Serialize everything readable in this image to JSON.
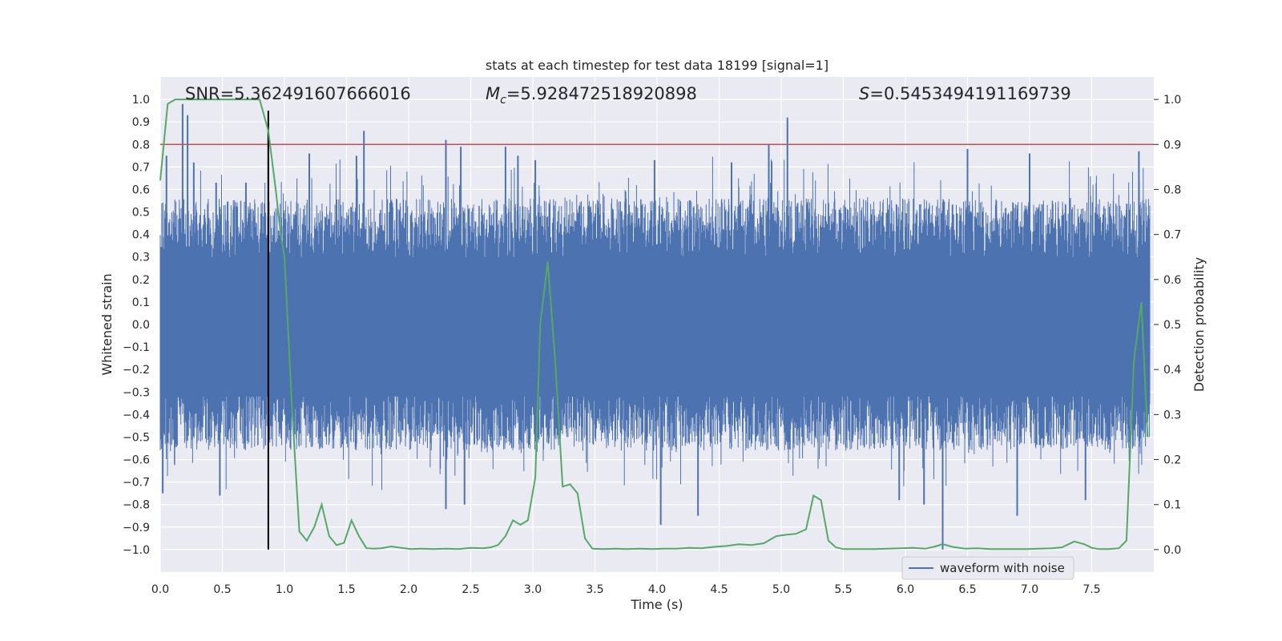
{
  "chart_data": {
    "type": "line",
    "title": "stats at each timestep for test data 18199 [signal=1]",
    "xlabel": "Time (s)",
    "ylabel": "Whitened strain",
    "y2label": "Detection probability",
    "xlim": [
      0.0,
      8.0
    ],
    "ylim": [
      -1.1,
      1.1
    ],
    "y2lim": [
      -0.05,
      1.05
    ],
    "x_ticks": [
      0.0,
      0.5,
      1.0,
      1.5,
      2.0,
      2.5,
      3.0,
      3.5,
      4.0,
      4.5,
      5.0,
      5.5,
      6.0,
      6.5,
      7.0,
      7.5
    ],
    "x_tick_labels": [
      "0.0",
      "0.5",
      "1.0",
      "1.5",
      "2.0",
      "2.5",
      "3.0",
      "3.5",
      "4.0",
      "4.5",
      "5.0",
      "5.5",
      "6.0",
      "6.5",
      "7.0",
      "7.5"
    ],
    "y_ticks": [
      1.0,
      0.9,
      0.8,
      0.7,
      0.6,
      0.5,
      0.4,
      0.3,
      0.2,
      0.1,
      0.0,
      -0.1,
      -0.2,
      -0.3,
      -0.4,
      -0.5,
      -0.6,
      -0.7,
      -0.8,
      -0.9,
      -1.0
    ],
    "y_tick_labels": [
      "1.0",
      "0.9",
      "0.8",
      "0.7",
      "0.6",
      "0.5",
      "0.4",
      "0.3",
      "0.2",
      "0.1",
      "0.0",
      "−0.1",
      "−0.2",
      "−0.3",
      "−0.4",
      "−0.5",
      "−0.6",
      "−0.7",
      "−0.8",
      "−0.9",
      "−1.0"
    ],
    "y2_ticks": [
      1.0,
      0.9,
      0.8,
      0.7,
      0.6,
      0.5,
      0.4,
      0.3,
      0.2,
      0.1,
      0.0
    ],
    "y2_tick_labels": [
      "1.0",
      "0.9",
      "0.8",
      "0.7",
      "0.6",
      "0.5",
      "0.4",
      "0.3",
      "0.2",
      "0.1",
      "0.0"
    ],
    "threshold": 0.9,
    "marker_time": 0.87,
    "stats": {
      "snr": "SNR=5.362491607666016",
      "mc_symbol": "M",
      "mc_sub": "c",
      "mc_value": "=5.928472518920898",
      "s_symbol": "S",
      "s_value": "=0.5453494191169739"
    },
    "legend": {
      "label": "waveform with noise",
      "position": "lower-right"
    },
    "colors": {
      "waveform": "#4c72b0",
      "probability": "#55a868",
      "threshold": "#c44e52",
      "marker": "#000000",
      "background": "#eaeaf2",
      "grid": "#ffffff"
    },
    "waveform": {
      "name": "waveform with noise",
      "description_samples": 8192,
      "spikes": [
        {
          "t": 0.05,
          "v": 0.75
        },
        {
          "t": 0.18,
          "v": 0.98
        },
        {
          "t": 0.22,
          "v": 0.93
        },
        {
          "t": 0.27,
          "v": 0.72
        },
        {
          "t": 0.45,
          "v": 0.63
        },
        {
          "t": 0.69,
          "v": 0.63
        },
        {
          "t": 0.87,
          "v": 0.85
        },
        {
          "t": 1.2,
          "v": 0.76
        },
        {
          "t": 1.58,
          "v": 0.75
        },
        {
          "t": 1.64,
          "v": 0.86
        },
        {
          "t": 2.3,
          "v": 0.82
        },
        {
          "t": 2.42,
          "v": 0.79
        },
        {
          "t": 2.78,
          "v": 0.79
        },
        {
          "t": 2.88,
          "v": 0.75
        },
        {
          "t": 3.02,
          "v": 0.73
        },
        {
          "t": 3.98,
          "v": 0.73
        },
        {
          "t": 4.6,
          "v": 0.72
        },
        {
          "t": 4.9,
          "v": 0.8
        },
        {
          "t": 5.05,
          "v": 0.92
        },
        {
          "t": 6.5,
          "v": 0.78
        },
        {
          "t": 7.0,
          "v": 0.76
        },
        {
          "t": 7.88,
          "v": 0.77
        },
        {
          "t": 0.02,
          "v": -0.75
        },
        {
          "t": 0.48,
          "v": -0.76
        },
        {
          "t": 2.3,
          "v": -0.82
        },
        {
          "t": 2.45,
          "v": -0.8
        },
        {
          "t": 4.03,
          "v": -0.89
        },
        {
          "t": 4.33,
          "v": -0.85
        },
        {
          "t": 5.95,
          "v": -0.78
        },
        {
          "t": 6.15,
          "v": -0.8
        },
        {
          "t": 6.3,
          "v": -1.0
        },
        {
          "t": 6.9,
          "v": -0.85
        },
        {
          "t": 7.45,
          "v": -0.78
        }
      ]
    },
    "probability": {
      "name": "detection probability",
      "x": [
        0.0,
        0.06,
        0.12,
        0.2,
        0.3,
        0.4,
        0.5,
        0.6,
        0.7,
        0.8,
        0.87,
        0.93,
        0.97,
        1.0,
        1.06,
        1.12,
        1.18,
        1.24,
        1.3,
        1.36,
        1.42,
        1.48,
        1.54,
        1.6,
        1.66,
        1.72,
        1.78,
        1.86,
        1.94,
        2.02,
        2.1,
        2.2,
        2.3,
        2.4,
        2.5,
        2.6,
        2.66,
        2.72,
        2.78,
        2.84,
        2.9,
        2.96,
        3.02,
        3.06,
        3.12,
        3.18,
        3.24,
        3.3,
        3.36,
        3.42,
        3.48,
        3.56,
        3.66,
        3.76,
        3.86,
        3.96,
        4.06,
        4.16,
        4.26,
        4.36,
        4.46,
        4.56,
        4.66,
        4.76,
        4.86,
        4.96,
        5.04,
        5.12,
        5.2,
        5.26,
        5.32,
        5.38,
        5.44,
        5.5,
        5.56,
        5.66,
        5.76,
        5.86,
        5.96,
        6.06,
        6.16,
        6.24,
        6.3,
        6.38,
        6.48,
        6.58,
        6.68,
        6.78,
        6.88,
        6.98,
        7.08,
        7.18,
        7.26,
        7.36,
        7.44,
        7.5,
        7.56,
        7.64,
        7.72,
        7.78,
        7.84,
        7.9,
        7.95
      ],
      "y": [
        0.82,
        0.99,
        1.0,
        1.0,
        1.0,
        1.0,
        1.0,
        1.0,
        1.0,
        1.0,
        0.93,
        0.8,
        0.7,
        0.65,
        0.32,
        0.04,
        0.02,
        0.05,
        0.1,
        0.03,
        0.01,
        0.015,
        0.065,
        0.03,
        0.003,
        0.002,
        0.003,
        0.007,
        0.004,
        0.001,
        0.002,
        0.001,
        0.002,
        0.001,
        0.004,
        0.003,
        0.005,
        0.01,
        0.03,
        0.065,
        0.055,
        0.065,
        0.16,
        0.5,
        0.64,
        0.42,
        0.14,
        0.145,
        0.125,
        0.025,
        0.002,
        0.001,
        0.002,
        0.001,
        0.002,
        0.001,
        0.002,
        0.002,
        0.004,
        0.003,
        0.006,
        0.008,
        0.012,
        0.01,
        0.014,
        0.03,
        0.033,
        0.035,
        0.045,
        0.12,
        0.11,
        0.02,
        0.005,
        0.001,
        0.001,
        0.001,
        0.001,
        0.002,
        0.003,
        0.004,
        0.002,
        0.007,
        0.012,
        0.006,
        0.002,
        0.003,
        0.001,
        0.001,
        0.001,
        0.001,
        0.002,
        0.003,
        0.005,
        0.018,
        0.012,
        0.004,
        0.001,
        0.001,
        0.003,
        0.02,
        0.42,
        0.55,
        0.25
      ]
    }
  }
}
